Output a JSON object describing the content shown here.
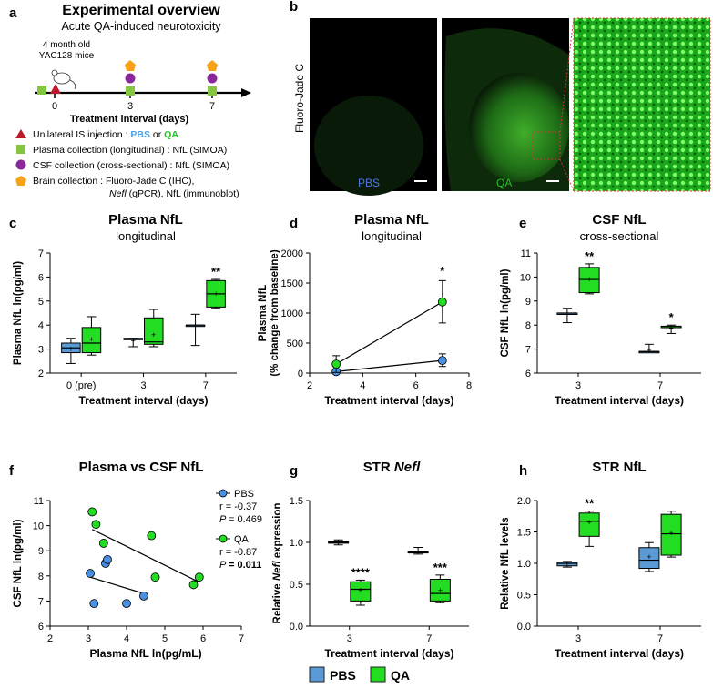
{
  "panel_labels": {
    "a": "a",
    "b": "b",
    "c": "c",
    "d": "d",
    "e": "e",
    "f": "f",
    "g": "g",
    "h": "h"
  },
  "panel_a": {
    "title": "Experimental overview",
    "subtitle": "Acute QA-induced neurotoxicity",
    "mice_line1": "4 month old",
    "mice_line2": "YAC128 mice",
    "ticks": [
      "0",
      "3",
      "7"
    ],
    "axis_label": "Treatment interval (days)",
    "legend": [
      {
        "symbol": "triangle",
        "color": "#c0182b",
        "pre": "Unilateral IS injection : ",
        "t1": "PBS",
        "t1color": "#4aa3e8",
        "mid": " or ",
        "t2": "QA",
        "t2color": "#22c022"
      },
      {
        "symbol": "square",
        "color": "#86c540",
        "text": "Plasma collection (longitudinal) : NfL (SIMOA)"
      },
      {
        "symbol": "circle",
        "color": "#8a2a9a",
        "text": "CSF collection (cross-sectional) : NfL (SIMOA)"
      },
      {
        "symbol": "pentagon",
        "color": "#f5a31a",
        "text": "Brain collection : Fluoro-Jade C (IHC),"
      }
    ],
    "legend_line5_italic": "Nefl",
    "legend_line5_rest": " (qPCR), NfL (immunoblot)"
  },
  "panel_b": {
    "stain_label": "Fluoro-Jade C",
    "pbs_label": "PBS",
    "qa_label": "QA",
    "pbs_color": "#4a78e0",
    "qa_color": "#22c022"
  },
  "colors": {
    "pbs": "#4a90e2",
    "qa": "#22dd22",
    "pbs_fill": "#5b9bd5"
  },
  "chart_data": [
    {
      "id": "c",
      "type": "box",
      "title": "Plasma NfL",
      "subtitle": "longitudinal",
      "ylabel": "Plasma NfL ln(pg/ml)",
      "xlabel": "Treatment interval (days)",
      "categories": [
        "0 (pre)",
        "3",
        "7"
      ],
      "ylim": [
        2,
        7
      ],
      "yticks": [
        2,
        3,
        4,
        5,
        6,
        7
      ],
      "series": [
        {
          "name": "PBS",
          "boxes": [
            {
              "min": 2.4,
              "q1": 2.85,
              "median": 3.05,
              "q3": 3.25,
              "max": 3.45,
              "mean": 3.0
            },
            {
              "min": 3.1,
              "q1": 3.4,
              "median": 3.4,
              "q3": 3.45,
              "max": 3.45,
              "mean": 3.35
            },
            {
              "min": 3.15,
              "q1": 4.0,
              "median": 4.0,
              "q3": 4.0,
              "max": 4.45,
              "mean": 4.0
            }
          ]
        },
        {
          "name": "QA",
          "boxes": [
            {
              "min": 2.75,
              "q1": 2.85,
              "median": 3.25,
              "q3": 3.9,
              "max": 4.35,
              "mean": 3.4
            },
            {
              "min": 3.1,
              "q1": 3.2,
              "median": 3.3,
              "q3": 4.3,
              "max": 4.65,
              "mean": 3.6
            },
            {
              "min": 4.7,
              "q1": 4.75,
              "median": 5.3,
              "q3": 5.85,
              "max": 5.9,
              "mean": 5.3
            }
          ]
        }
      ],
      "annotations": [
        {
          "category": "7",
          "series": "QA",
          "text": "**"
        }
      ]
    },
    {
      "id": "d",
      "type": "line",
      "title": "Plasma NfL",
      "subtitle": "longitudinal",
      "ylabel": "Plasma NfL",
      "ylabel2": "(% change from baseline)",
      "xlabel": "Treatment interval (days)",
      "xlim": [
        2,
        8
      ],
      "xticks": [
        2,
        4,
        6,
        8
      ],
      "ylim": [
        0,
        2000
      ],
      "yticks": [
        0,
        500,
        1000,
        1500,
        2000
      ],
      "series": [
        {
          "name": "PBS",
          "x": [
            3,
            7
          ],
          "y": [
            25,
            210
          ],
          "err": [
            [
              0,
              0
            ],
            [
              100,
              110
            ]
          ]
        },
        {
          "name": "QA",
          "x": [
            3,
            7
          ],
          "y": [
            150,
            1185
          ],
          "err": [
            [
              140,
              140
            ],
            [
              350,
              355
            ]
          ]
        }
      ],
      "annotations": [
        {
          "x": 7,
          "y": 1640,
          "text": "*"
        }
      ]
    },
    {
      "id": "e",
      "type": "box",
      "title": "CSF NfL",
      "subtitle": "cross-sectional",
      "ylabel": "CSF NfL ln(pg/ml)",
      "xlabel": "Treatment interval (days)",
      "categories": [
        "3",
        "7"
      ],
      "ylim": [
        6,
        11
      ],
      "yticks": [
        6,
        7,
        8,
        9,
        10,
        11
      ],
      "series": [
        {
          "name": "PBS",
          "boxes": [
            {
              "min": 8.1,
              "q1": 8.5,
              "median": 8.5,
              "q3": 8.5,
              "max": 8.7,
              "mean": 8.45
            },
            {
              "min": 6.9,
              "q1": 6.9,
              "median": 6.9,
              "q3": 6.9,
              "max": 7.2,
              "mean": 6.95
            }
          ]
        },
        {
          "name": "QA",
          "boxes": [
            {
              "min": 9.3,
              "q1": 9.35,
              "median": 9.9,
              "q3": 10.4,
              "max": 10.55,
              "mean": 9.9
            },
            {
              "min": 7.65,
              "q1": 7.95,
              "median": 7.95,
              "q3": 7.95,
              "max": 8.0,
              "mean": 7.85
            }
          ]
        }
      ],
      "annotations": [
        {
          "category": "3",
          "series": "QA",
          "text": "**"
        },
        {
          "category": "7",
          "series": "QA",
          "text": "*"
        }
      ]
    },
    {
      "id": "f",
      "type": "scatter",
      "title": "Plasma vs CSF NfL",
      "xlabel": "Plasma NfL ln(pg/mL)",
      "ylabel": "CSF NfL ln(pg/ml)",
      "xlim": [
        2,
        7
      ],
      "xticks": [
        2,
        3,
        4,
        5,
        6,
        7
      ],
      "ylim": [
        6,
        11
      ],
      "yticks": [
        6,
        7,
        8,
        9,
        10,
        11
      ],
      "series": [
        {
          "name": "PBS",
          "x": [
            3.05,
            3.15,
            3.45,
            3.5,
            4.0,
            4.45
          ],
          "y": [
            8.1,
            6.9,
            8.5,
            8.65,
            6.9,
            7.2
          ],
          "fit": [
            [
              3.05,
              7.95
            ],
            [
              4.45,
              7.3
            ]
          ],
          "r": "r = -0.37",
          "p": "= 0.469",
          "p_bold": false
        },
        {
          "name": "QA",
          "x": [
            3.1,
            3.2,
            3.4,
            4.65,
            4.75,
            5.75,
            5.9
          ],
          "y": [
            10.55,
            10.05,
            9.3,
            9.6,
            7.95,
            7.65,
            7.95
          ],
          "fit": [
            [
              3.1,
              9.85
            ],
            [
              5.9,
              7.75
            ]
          ],
          "r": "r = -0.87",
          "p": "= 0.011",
          "p_bold": true
        }
      ]
    },
    {
      "id": "g",
      "type": "box",
      "title": "STR ",
      "title_italic": "Nefl",
      "ylabel_pre": "Relative ",
      "ylabel_italic": "Nefl",
      "ylabel_post": " expression",
      "xlabel": "Treatment interval (days)",
      "categories": [
        "3",
        "7"
      ],
      "ylim": [
        0,
        1.5
      ],
      "yticks": [
        0.0,
        0.5,
        1.0,
        1.5
      ],
      "series": [
        {
          "name": "PBS",
          "boxes": [
            {
              "min": 0.97,
              "q1": 0.99,
              "median": 1.0,
              "q3": 1.01,
              "max": 1.03,
              "mean": 1.0
            },
            {
              "min": 0.86,
              "q1": 0.88,
              "median": 0.88,
              "q3": 0.89,
              "max": 0.94,
              "mean": 0.89
            }
          ]
        },
        {
          "name": "QA",
          "boxes": [
            {
              "min": 0.25,
              "q1": 0.3,
              "median": 0.44,
              "q3": 0.53,
              "max": 0.55,
              "mean": 0.43
            },
            {
              "min": 0.28,
              "q1": 0.3,
              "median": 0.39,
              "q3": 0.56,
              "max": 0.61,
              "mean": 0.43
            }
          ]
        }
      ],
      "annotations": [
        {
          "category": "3",
          "series": "QA",
          "text": "****"
        },
        {
          "category": "7",
          "series": "QA",
          "text": "***"
        }
      ]
    },
    {
      "id": "h",
      "type": "box",
      "title": "STR NfL",
      "ylabel": "Relative NfL levels",
      "xlabel": "Treatment interval (days)",
      "categories": [
        "3",
        "7"
      ],
      "ylim": [
        0,
        2.0
      ],
      "yticks": [
        0.0,
        0.5,
        1.0,
        1.5,
        2.0
      ],
      "series": [
        {
          "name": "PBS",
          "boxes": [
            {
              "min": 0.94,
              "q1": 0.96,
              "median": 1.0,
              "q3": 1.02,
              "max": 1.03,
              "mean": 0.99
            },
            {
              "min": 0.87,
              "q1": 0.92,
              "median": 1.05,
              "q3": 1.25,
              "max": 1.33,
              "mean": 1.1
            }
          ]
        },
        {
          "name": "QA",
          "boxes": [
            {
              "min": 1.27,
              "q1": 1.43,
              "median": 1.67,
              "q3": 1.8,
              "max": 1.83,
              "mean": 1.65
            },
            {
              "min": 1.1,
              "q1": 1.13,
              "median": 1.47,
              "q3": 1.78,
              "max": 1.83,
              "mean": 1.48
            }
          ]
        }
      ],
      "annotations": [
        {
          "category": "3",
          "series": "QA",
          "text": "**"
        }
      ]
    }
  ],
  "legend_bottom": {
    "pbs": "PBS",
    "qa": "QA"
  }
}
